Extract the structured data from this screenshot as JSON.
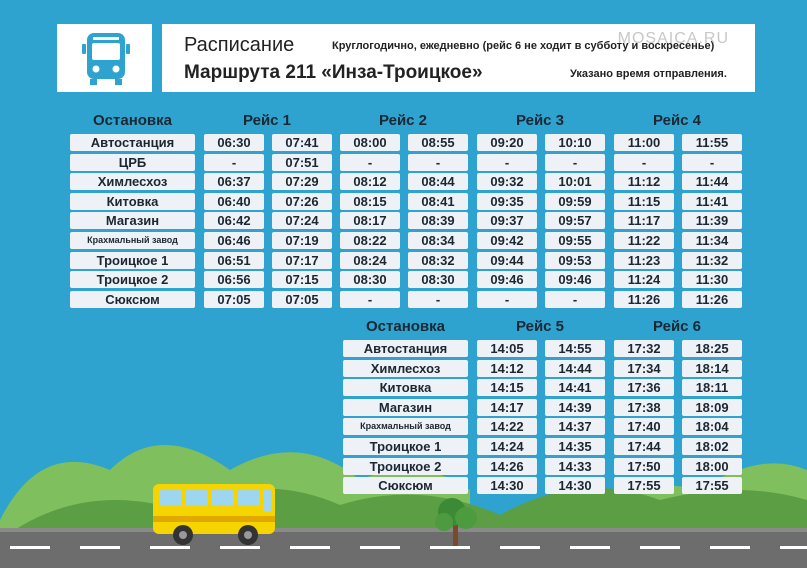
{
  "header": {
    "title": "Расписание",
    "route": "Маршрута 211 «Инза-Троицкое»",
    "note": "Круглогодично, ежедневно (рейс 6 не ходит в субботу и воскресенье)",
    "departure_note": "Указано время отправления.",
    "watermark": "MOSAICA.RU"
  },
  "table1": {
    "stop_header": "Остановка",
    "trip_headers": [
      "Рейс 1",
      "Рейс 2",
      "Рейс 3",
      "Рейс 4"
    ],
    "rows": [
      {
        "stop": "Автостанция",
        "times": [
          "06:30",
          "07:41",
          "08:00",
          "08:55",
          "09:20",
          "10:10",
          "11:00",
          "11:55"
        ]
      },
      {
        "stop": "ЦРБ",
        "times": [
          "-",
          "07:51",
          "-",
          "-",
          "-",
          "-",
          "-",
          "-"
        ]
      },
      {
        "stop": "Химлесхоз",
        "times": [
          "06:37",
          "07:29",
          "08:12",
          "08:44",
          "09:32",
          "10:01",
          "11:12",
          "11:44"
        ]
      },
      {
        "stop": "Китовка",
        "times": [
          "06:40",
          "07:26",
          "08:15",
          "08:41",
          "09:35",
          "09:59",
          "11:15",
          "11:41"
        ]
      },
      {
        "stop": "Магазин",
        "times": [
          "06:42",
          "07:24",
          "08:17",
          "08:39",
          "09:37",
          "09:57",
          "11:17",
          "11:39"
        ]
      },
      {
        "stop": "Крахмальный завод",
        "times": [
          "06:46",
          "07:19",
          "08:22",
          "08:34",
          "09:42",
          "09:55",
          "11:22",
          "11:34"
        ]
      },
      {
        "stop": "Троицкое 1",
        "times": [
          "06:51",
          "07:17",
          "08:24",
          "08:32",
          "09:44",
          "09:53",
          "11:23",
          "11:32"
        ]
      },
      {
        "stop": "Троицкое 2",
        "times": [
          "06:56",
          "07:15",
          "08:30",
          "08:30",
          "09:46",
          "09:46",
          "11:24",
          "11:30"
        ]
      },
      {
        "stop": "Сюксюм",
        "times": [
          "07:05",
          "07:05",
          "-",
          "-",
          "-",
          "-",
          "11:26",
          "11:26"
        ]
      }
    ]
  },
  "table2": {
    "stop_header": "Остановка",
    "trip_headers": [
      "Рейс 5",
      "Рейс 6"
    ],
    "rows": [
      {
        "stop": "Автостанция",
        "times": [
          "14:05",
          "14:55",
          "17:32",
          "18:25"
        ]
      },
      {
        "stop": "Химлесхоз",
        "times": [
          "14:12",
          "14:44",
          "17:34",
          "18:14"
        ]
      },
      {
        "stop": "Китовка",
        "times": [
          "14:15",
          "14:41",
          "17:36",
          "18:11"
        ]
      },
      {
        "stop": "Магазин",
        "times": [
          "14:17",
          "14:39",
          "17:38",
          "18:09"
        ]
      },
      {
        "stop": "Крахмальный завод",
        "times": [
          "14:22",
          "14:37",
          "17:40",
          "18:04"
        ]
      },
      {
        "stop": "Троицкое 1",
        "times": [
          "14:24",
          "14:35",
          "17:44",
          "18:02"
        ]
      },
      {
        "stop": "Троицкое 2",
        "times": [
          "14:26",
          "14:33",
          "17:50",
          "18:00"
        ]
      },
      {
        "stop": "Сюксюм",
        "times": [
          "14:30",
          "14:30",
          "17:55",
          "17:55"
        ]
      }
    ]
  },
  "colors": {
    "background": "#2ea3d0",
    "cell": "#eef1f5",
    "hills": "#6aa84f",
    "road": "#6d6d6d",
    "bus": "#f6d400"
  }
}
